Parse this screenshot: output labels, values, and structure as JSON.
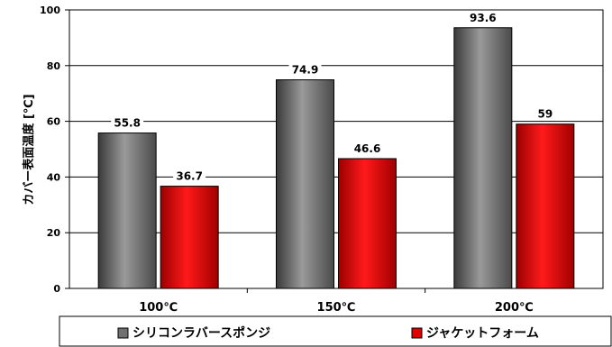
{
  "chart_data": {
    "type": "bar",
    "title": "",
    "xlabel": "",
    "ylabel": "カバー表面温度 [℃]",
    "ylim": [
      0,
      100
    ],
    "yticks": [
      0,
      20,
      40,
      60,
      80,
      100
    ],
    "grid": true,
    "legend_position": "bottom",
    "categories": [
      "100℃",
      "150℃",
      "200℃"
    ],
    "series": [
      {
        "name": "シリコンラバースポンジ",
        "values": [
          55.8,
          74.9,
          93.6
        ],
        "labels": [
          "55.8",
          "74.9",
          "93.6"
        ],
        "color": "#707070"
      },
      {
        "name": "ジャケットフォーム",
        "values": [
          36.7,
          46.6,
          59
        ],
        "labels": [
          "36.7",
          "46.6",
          "59"
        ],
        "color": "#e00000"
      }
    ]
  }
}
